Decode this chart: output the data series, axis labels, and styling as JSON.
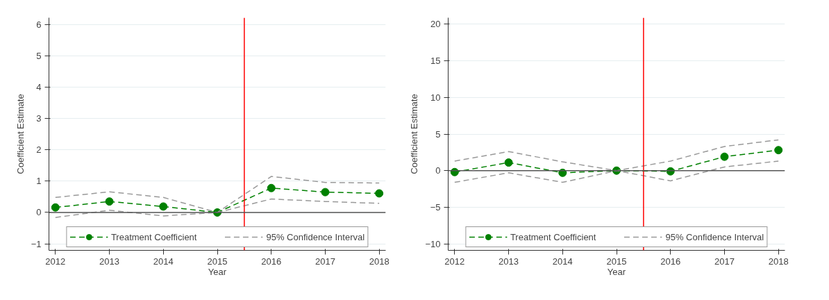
{
  "chart_data": [
    {
      "type": "line",
      "xlabel": "Year",
      "ylabel": "Coefficient Estimate",
      "x": [
        2012,
        2013,
        2014,
        2015,
        2016,
        2017,
        2018
      ],
      "xlim": [
        2011.88,
        2018.12
      ],
      "xticks": [
        2012,
        2013,
        2014,
        2015,
        2016,
        2017,
        2018
      ],
      "ylim": [
        -1.21,
        6.22
      ],
      "yticks": [
        -1,
        0,
        1,
        2,
        3,
        4,
        5,
        6
      ],
      "grid": "y",
      "legend": "bottom",
      "line_style": "dashed",
      "series": [
        {
          "name": "Treatment Coefficient",
          "color": "#008000",
          "marker": "circle",
          "values": [
            0.16,
            0.35,
            0.19,
            0,
            0.78,
            0.65,
            0.61
          ]
        },
        {
          "name": "95% Confidence Interval",
          "color": "#999999",
          "marker": "none",
          "values": [
            0.48,
            0.66,
            0.48,
            0,
            1.15,
            0.96,
            0.94
          ]
        },
        {
          "color": "#999999",
          "marker": "none",
          "values": [
            -0.16,
            0.07,
            -0.11,
            0,
            0.43,
            0.35,
            0.29
          ]
        }
      ],
      "ref_lines": [
        {
          "axis": "x",
          "value": 2015.5,
          "color": "#ff0000",
          "line_style": "solid"
        },
        {
          "axis": "y",
          "value": 0,
          "color": "#555555",
          "line_style": "solid"
        }
      ]
    },
    {
      "type": "line",
      "xlabel": "Year",
      "ylabel": "Coefficient Estimate",
      "x": [
        2012,
        2013,
        2014,
        2015,
        2016,
        2017,
        2018
      ],
      "xlim": [
        2011.88,
        2018.12
      ],
      "xticks": [
        2012,
        2013,
        2014,
        2015,
        2016,
        2017,
        2018
      ],
      "ylim": [
        -10.9,
        20.9
      ],
      "yticks": [
        -10,
        -5,
        0,
        5,
        10,
        15,
        20
      ],
      "grid": "y",
      "legend": "bottom",
      "line_style": "dashed",
      "series": [
        {
          "name": "Treatment Coefficient",
          "color": "#008000",
          "marker": "circle",
          "values": [
            -0.2,
            1.1,
            -0.3,
            0,
            -0.1,
            1.9,
            2.8
          ]
        },
        {
          "name": "95% Confidence Interval",
          "color": "#999999",
          "marker": "none",
          "values": [
            1.3,
            2.6,
            1.2,
            0,
            1.3,
            3.3,
            4.2
          ]
        },
        {
          "color": "#999999",
          "marker": "none",
          "values": [
            -1.6,
            -0.3,
            -1.6,
            0,
            -1.4,
            0.5,
            1.3
          ]
        }
      ],
      "ref_lines": [
        {
          "axis": "x",
          "value": 2015.5,
          "color": "#ff0000",
          "line_style": "solid"
        },
        {
          "axis": "y",
          "value": 0,
          "color": "#555555",
          "line_style": "solid"
        }
      ]
    }
  ]
}
